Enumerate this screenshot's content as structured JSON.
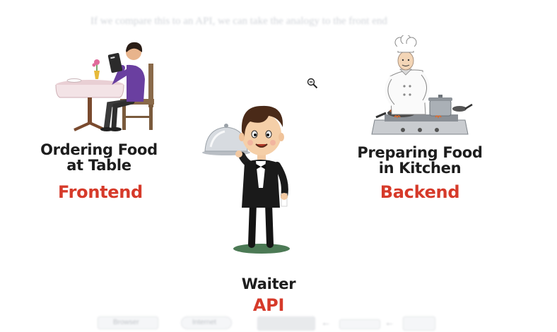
{
  "header": {
    "ghost_text": "If we compare this to an API, we can take the analogy to the front end"
  },
  "frontend": {
    "caption_line1": "Ordering Food",
    "caption_line2": "at Table",
    "tag": "Frontend"
  },
  "api": {
    "caption": "Waiter",
    "tag": "API"
  },
  "backend": {
    "caption_line1": "Preparing Food",
    "caption_line2": "in Kitchen",
    "tag": "Backend"
  },
  "bottom_bar": {
    "label_browser": "Browser",
    "label_internet": "Internet"
  },
  "colors": {
    "accent_red": "#d63a2a",
    "caption": "#1d1d1d",
    "shirt": "#6a3fa0",
    "tablecloth": "#f0dde0"
  }
}
